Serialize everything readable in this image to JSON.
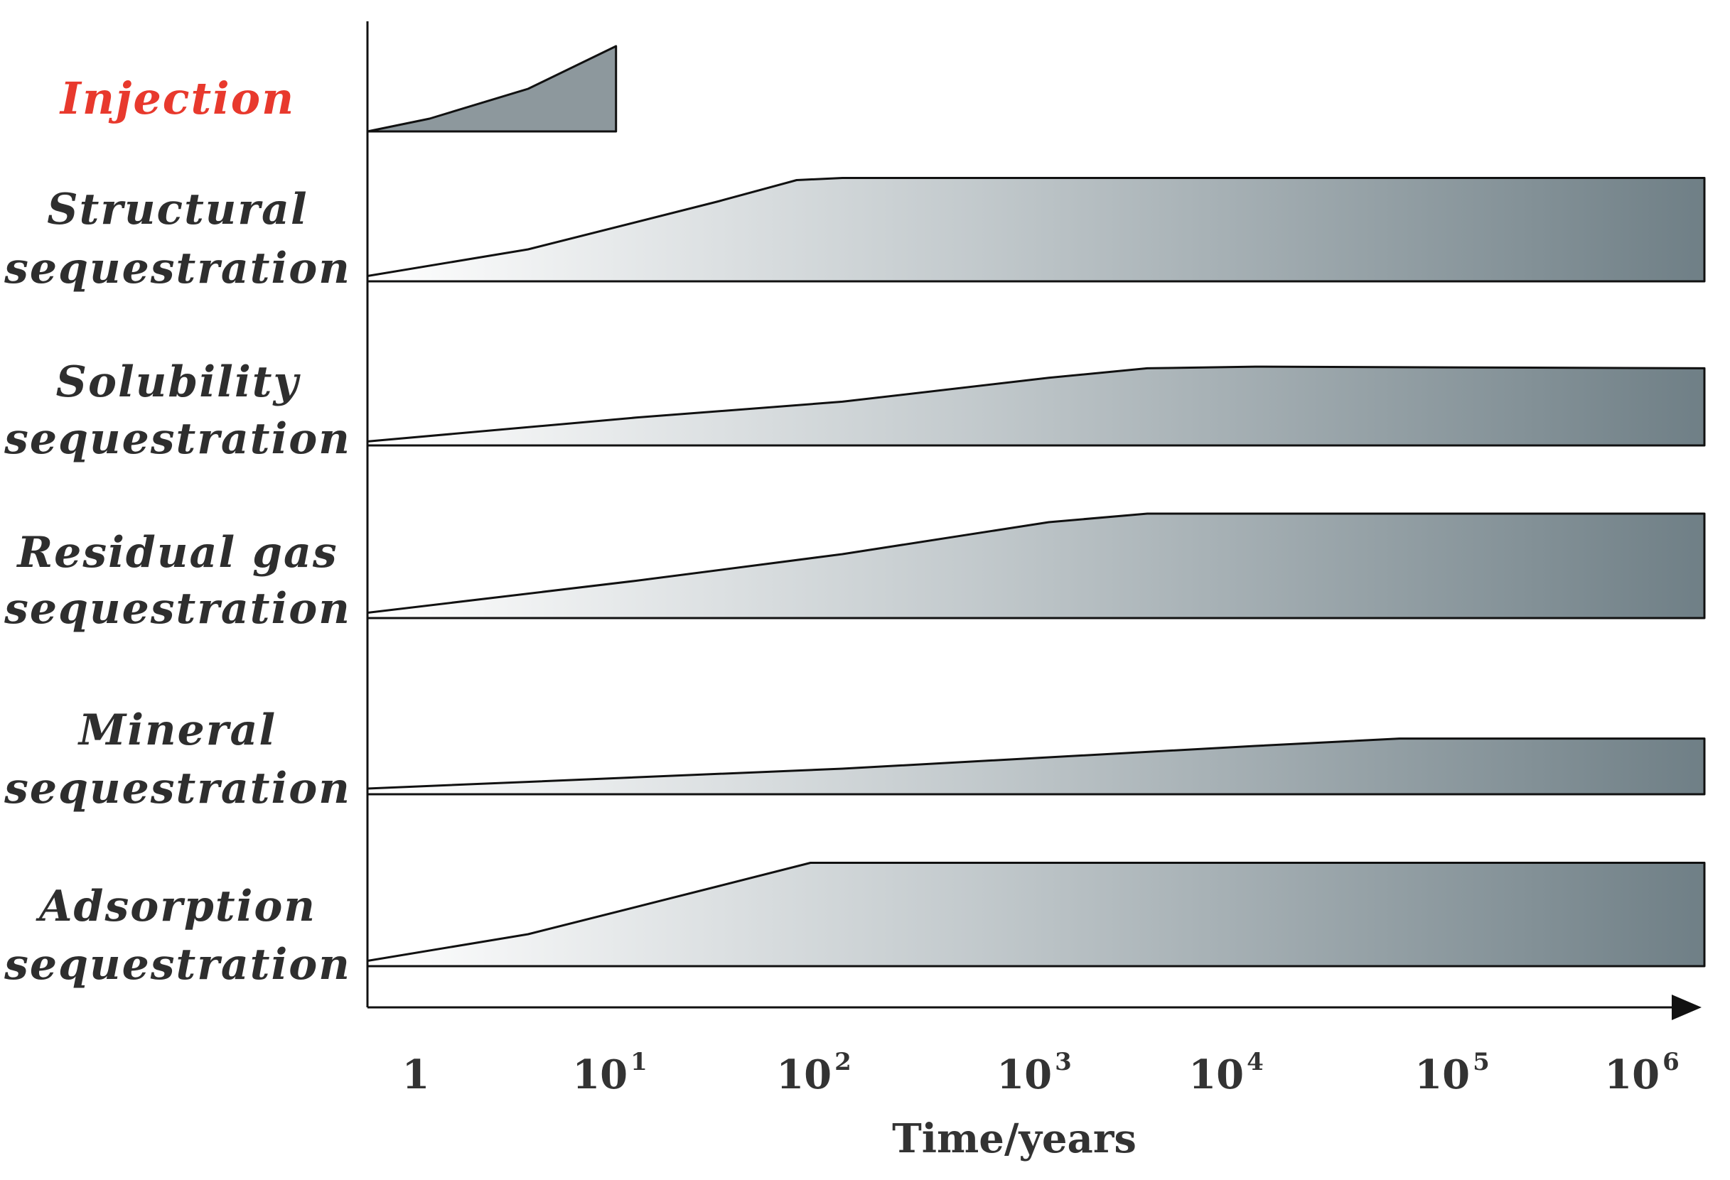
{
  "chart_data": {
    "type": "area",
    "xlabel": "Time/years",
    "x_scale": "log",
    "x_ticks": [
      {
        "value": 1,
        "base": "1",
        "exp": ""
      },
      {
        "value": 10,
        "base": "10",
        "exp": "1"
      },
      {
        "value": 100,
        "base": "10",
        "exp": "2"
      },
      {
        "value": 1000,
        "base": "10",
        "exp": "3"
      },
      {
        "value": 10000,
        "base": "10",
        "exp": "4"
      },
      {
        "value": 100000,
        "base": "10",
        "exp": "5"
      },
      {
        "value": 1000000,
        "base": "10",
        "exp": "6"
      }
    ],
    "xlim": [
      0.5,
      1500000
    ],
    "colors": {
      "injection_label": "#e8392d",
      "label": "#2e2e2e",
      "fill_start": "#ffffff",
      "fill_end": "#6f7f86",
      "injection_fill": "#8d989d",
      "stroke": "#111111"
    },
    "series": [
      {
        "name": "Injection",
        "label_lines": [
          "Injection"
        ],
        "highlight": true,
        "points": [
          [
            0.5,
            0.0
          ],
          [
            1,
            0.15
          ],
          [
            3,
            0.5
          ],
          [
            8,
            1.0
          ],
          [
            8,
            0.0
          ]
        ]
      },
      {
        "name": "Structural sequestration",
        "label_lines": [
          "Structural",
          "sequestration"
        ],
        "points": [
          [
            0.5,
            0.05
          ],
          [
            3,
            0.3
          ],
          [
            25,
            0.75
          ],
          [
            60,
            0.95
          ],
          [
            100,
            0.97
          ],
          [
            1500000,
            0.97
          ]
        ]
      },
      {
        "name": "Solubility sequestration",
        "label_lines": [
          "Solubility",
          "sequestration"
        ],
        "points": [
          [
            0.5,
            0.05
          ],
          [
            10,
            0.35
          ],
          [
            100,
            0.55
          ],
          [
            1000,
            0.85
          ],
          [
            3000,
            0.97
          ],
          [
            10000,
            0.99
          ],
          [
            1500000,
            0.97
          ]
        ]
      },
      {
        "name": "Residual gas sequestration",
        "label_lines": [
          "Residual gas",
          "sequestration"
        ],
        "points": [
          [
            0.5,
            0.05
          ],
          [
            10,
            0.35
          ],
          [
            100,
            0.6
          ],
          [
            1000,
            0.9
          ],
          [
            3000,
            0.98
          ],
          [
            1500000,
            0.98
          ]
        ]
      },
      {
        "name": "Mineral sequestration",
        "label_lines": [
          "Mineral",
          "sequestration"
        ],
        "points": [
          [
            0.5,
            0.1
          ],
          [
            100,
            0.45
          ],
          [
            10000,
            0.85
          ],
          [
            50000,
            0.98
          ],
          [
            1500000,
            0.98
          ]
        ]
      },
      {
        "name": "Adsorption sequestration",
        "label_lines": [
          "Adsorption",
          "sequestration"
        ],
        "points": [
          [
            0.5,
            0.05
          ],
          [
            3,
            0.3
          ],
          [
            25,
            0.75
          ],
          [
            70,
            0.97
          ],
          [
            100,
            0.97
          ],
          [
            1500000,
            0.97
          ]
        ]
      }
    ]
  }
}
